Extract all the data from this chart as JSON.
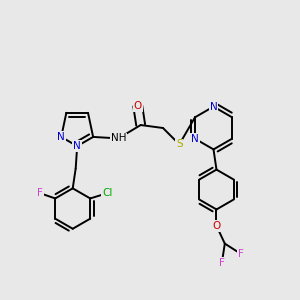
{
  "bg_color": "#e8e8e8",
  "bond_width": 1.4,
  "figsize": [
    3.0,
    3.0
  ],
  "dpi": 100,
  "xlim": [
    0,
    1
  ],
  "ylim": [
    0,
    1
  ]
}
